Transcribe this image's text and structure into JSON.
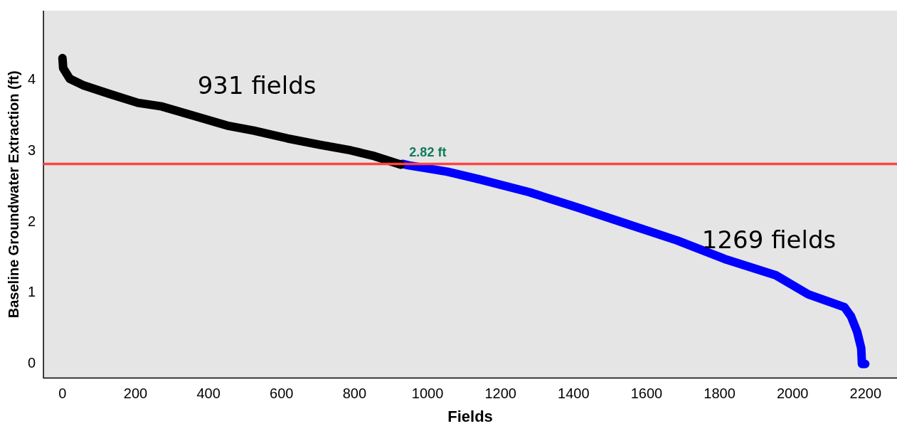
{
  "chart_data": {
    "type": "line",
    "xlabel": "Fields",
    "ylabel": "Baseline Groundwater Extraction (ft)",
    "xlim": [
      -52,
      2286
    ],
    "ylim": [
      -0.2,
      4.98
    ],
    "xticks": [
      0,
      200,
      400,
      600,
      800,
      1000,
      1200,
      1400,
      1600,
      1800,
      2000,
      2200
    ],
    "yticks": [
      0,
      1,
      2,
      3,
      4
    ],
    "grid": false,
    "legend": false,
    "marker": "none",
    "line_style": "solid",
    "series": [
      {
        "color": "#000000",
        "x": [
          0,
          2,
          20,
          56,
          127,
          207,
          272,
          351,
          451,
          524,
          616,
          703,
          790,
          854,
          927
        ],
        "values": [
          4.31,
          4.17,
          4.02,
          3.93,
          3.81,
          3.68,
          3.63,
          3.51,
          3.36,
          3.29,
          3.18,
          3.09,
          3.01,
          2.93,
          2.81
        ]
      },
      {
        "color": "#0000ff",
        "x": [
          931,
          947,
          1054,
          1144,
          1279,
          1414,
          1549,
          1684,
          1819,
          1954,
          2043,
          2142,
          2160,
          2177,
          2188,
          2190,
          2199
        ],
        "values": [
          2.82,
          2.8,
          2.71,
          2.6,
          2.42,
          2.2,
          1.97,
          1.74,
          1.47,
          1.25,
          0.98,
          0.8,
          0.67,
          0.45,
          0.22,
          0,
          0
        ]
      }
    ],
    "ref_lines": [
      {
        "axis": "y",
        "value": 2.82,
        "label": "2.82 ft",
        "color": "#ff4444"
      }
    ],
    "annotations": [
      "931 fields",
      "1269 fields"
    ]
  }
}
